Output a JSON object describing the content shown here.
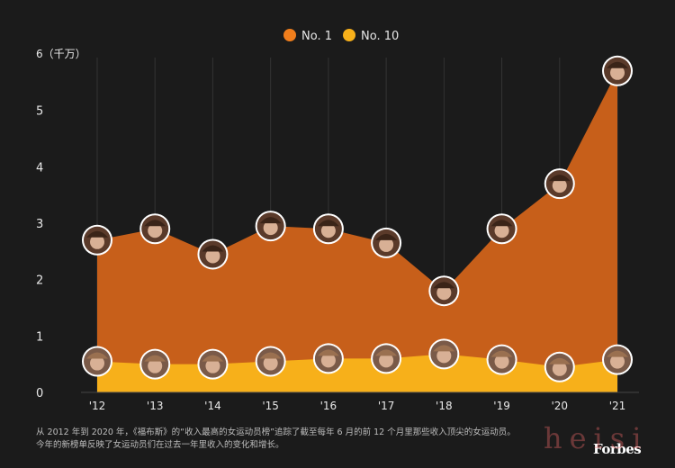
{
  "chart_data": {
    "type": "area",
    "title": "",
    "xlabel": "",
    "ylabel": "6（千万）",
    "ylim": [
      0,
      6
    ],
    "yticks": [
      "0",
      "1",
      "2",
      "3",
      "4",
      "5",
      "6"
    ],
    "categories": [
      "'12",
      "'13",
      "'14",
      "'15",
      "'16",
      "'17",
      "'18",
      "'19",
      "'20",
      "'21"
    ],
    "grid": true,
    "legend_position": "top-center",
    "series": [
      {
        "name": "No. 1",
        "color": "#f07e1c",
        "values": [
          2.7,
          2.9,
          2.45,
          2.95,
          2.9,
          2.65,
          1.8,
          2.9,
          3.7,
          5.7
        ]
      },
      {
        "name": "No. 10",
        "color": "#f7b01a",
        "values": [
          0.55,
          0.5,
          0.5,
          0.55,
          0.6,
          0.6,
          0.68,
          0.58,
          0.45,
          0.58
        ]
      }
    ]
  },
  "footnote": {
    "line1": "从 2012 年到 2020 年，《福布斯》的“收入最高的女运动员榜”追踪了截至每年 6 月的前 12 个月里那些收入顶尖的女运动员。",
    "line2": "今年的新榜单反映了女运动员们在过去一年里收入的变化和增长。"
  },
  "brand": "Forbes",
  "watermark": "heisi"
}
